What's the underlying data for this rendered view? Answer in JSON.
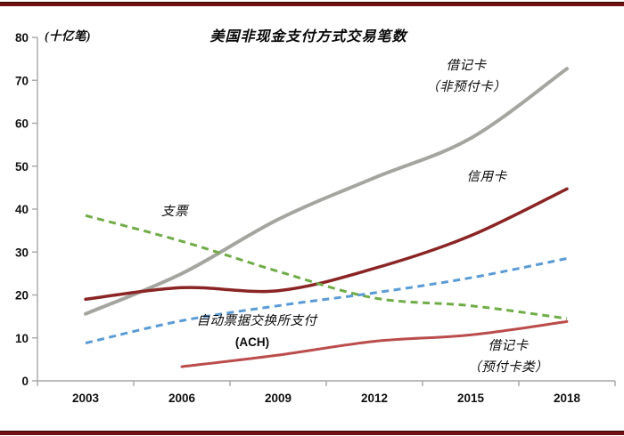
{
  "page": {
    "background": "#ffffff",
    "top_border_color": "#701012",
    "bottom_border_color": "#701012"
  },
  "chart_data": {
    "type": "line",
    "title": "美国非现金支付方式交易笔数",
    "ylabel": "(十亿笔)",
    "xlabel": "",
    "x": [
      2003,
      2006,
      2009,
      2012,
      2015,
      2018
    ],
    "xtick_labels": [
      "2003",
      "2006",
      "2009",
      "2012",
      "2015",
      "2018"
    ],
    "ylim": [
      0,
      80
    ],
    "ytick_step": 10,
    "grid": false,
    "legend_position": "inline-annotations",
    "axis_color": "#a6a6a6",
    "series": [
      {
        "id": "debit-non-prepaid",
        "name": "借记卡（非预付卡）",
        "values": [
          15.6,
          25.0,
          37.6,
          47.3,
          56.5,
          72.7
        ],
        "color": "#a5a5a0",
        "dashed": false,
        "width": 4
      },
      {
        "id": "credit-card",
        "name": "信用卡",
        "values": [
          19.0,
          21.7,
          21.0,
          26.2,
          33.8,
          44.7
        ],
        "color": "#8b2525",
        "dashed": false,
        "width": 3.5
      },
      {
        "id": "checks",
        "name": "支票",
        "values": [
          38.5,
          32.5,
          25.5,
          19.3,
          17.5,
          14.5
        ],
        "color": "#6fac47",
        "dashed": true,
        "width": 3
      },
      {
        "id": "ach",
        "name": "自动票据交换所支付(ACH)",
        "values": [
          8.8,
          14.0,
          17.5,
          20.5,
          24.0,
          28.5
        ],
        "color": "#5b9bd5",
        "dashed": true,
        "width": 3
      },
      {
        "id": "debit-prepaid",
        "name": "借记卡（预付卡类）",
        "values": [
          null,
          3.3,
          6.0,
          9.2,
          10.7,
          13.8
        ],
        "color": "#bb4c4c",
        "dashed": false,
        "width": 3
      }
    ],
    "annotations": [
      {
        "id": "debit-non-prepaid",
        "lines": [
          "借记卡",
          "（非预付卡）"
        ]
      },
      {
        "id": "credit-card",
        "lines": [
          "信用卡"
        ]
      },
      {
        "id": "checks",
        "lines": [
          "支票"
        ]
      },
      {
        "id": "ach",
        "lines": [
          "自动票据交换所支付",
          "(ACH)"
        ]
      },
      {
        "id": "debit-prepaid",
        "lines": [
          "借记卡",
          "（预付卡类）"
        ]
      }
    ]
  }
}
